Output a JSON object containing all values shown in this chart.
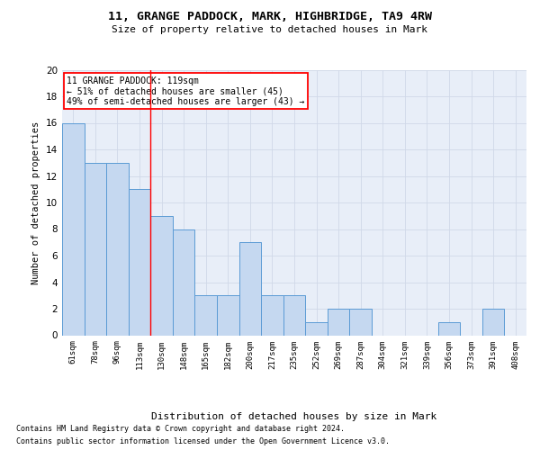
{
  "title1": "11, GRANGE PADDOCK, MARK, HIGHBRIDGE, TA9 4RW",
  "title2": "Size of property relative to detached houses in Mark",
  "xlabel": "Distribution of detached houses by size in Mark",
  "ylabel": "Number of detached properties",
  "bar_labels": [
    "61sqm",
    "78sqm",
    "96sqm",
    "113sqm",
    "130sqm",
    "148sqm",
    "165sqm",
    "182sqm",
    "200sqm",
    "217sqm",
    "235sqm",
    "252sqm",
    "269sqm",
    "287sqm",
    "304sqm",
    "321sqm",
    "339sqm",
    "356sqm",
    "373sqm",
    "391sqm",
    "408sqm"
  ],
  "bar_values": [
    16,
    13,
    13,
    11,
    9,
    8,
    3,
    3,
    7,
    3,
    3,
    1,
    2,
    2,
    0,
    0,
    0,
    1,
    0,
    2,
    0
  ],
  "bar_color": "#c5d8f0",
  "bar_edge_color": "#5b9bd5",
  "grid_color": "#d0d8e8",
  "annotation_text": "11 GRANGE PADDOCK: 119sqm\n← 51% of detached houses are smaller (45)\n49% of semi-detached houses are larger (43) →",
  "annotation_box_color": "white",
  "annotation_border_color": "red",
  "footer1": "Contains HM Land Registry data © Crown copyright and database right 2024.",
  "footer2": "Contains public sector information licensed under the Open Government Licence v3.0.",
  "ylim": [
    0,
    20
  ],
  "yticks": [
    0,
    2,
    4,
    6,
    8,
    10,
    12,
    14,
    16,
    18,
    20
  ],
  "bg_color": "#e8eef8",
  "red_line_index": 3.5
}
